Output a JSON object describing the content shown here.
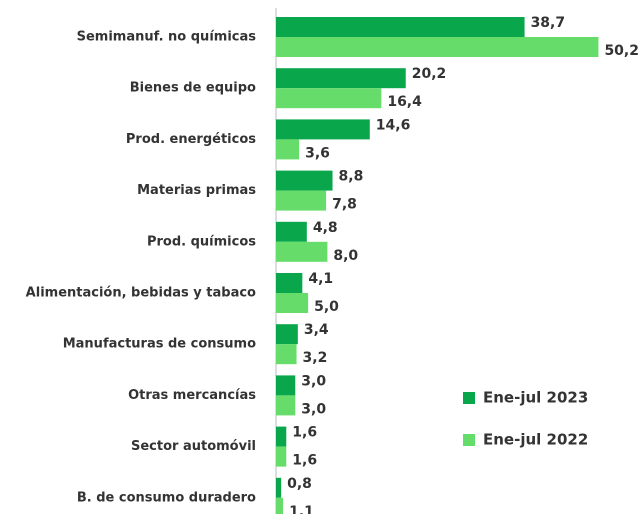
{
  "chart_data": {
    "type": "hbar",
    "categories": [
      "Semimanuf. no químicas",
      "Bienes de equipo",
      "Prod. energéticos",
      "Materias primas",
      "Prod. químicos",
      "Alimentación, bebidas y tabaco",
      "Manufacturas de consumo",
      "Otras mercancías",
      "Sector automóvil",
      "B. de consumo duradero"
    ],
    "series": [
      {
        "name": "Ene-jul 2023",
        "color": "#0aa64c",
        "values": [
          38.7,
          20.2,
          14.6,
          8.8,
          4.8,
          4.1,
          3.4,
          3.0,
          1.6,
          0.8
        ],
        "value_labels": [
          "38,7",
          "20,2",
          "14,6",
          "8,8",
          "4,8",
          "4,1",
          "3,4",
          "3,0",
          "1,6",
          "0,8"
        ]
      },
      {
        "name": "Ene-jul 2022",
        "color": "#66dd6a",
        "values": [
          50.2,
          16.4,
          3.6,
          7.8,
          8.0,
          5.0,
          3.2,
          3.0,
          1.6,
          1.1
        ],
        "value_labels": [
          "50,2",
          "16,4",
          "3,6",
          "7,8",
          "8,0",
          "5,0",
          "3,2",
          "3,0",
          "1,6",
          "1,1"
        ]
      }
    ],
    "xlim": [
      0,
      52
    ],
    "legend": "lower right"
  }
}
